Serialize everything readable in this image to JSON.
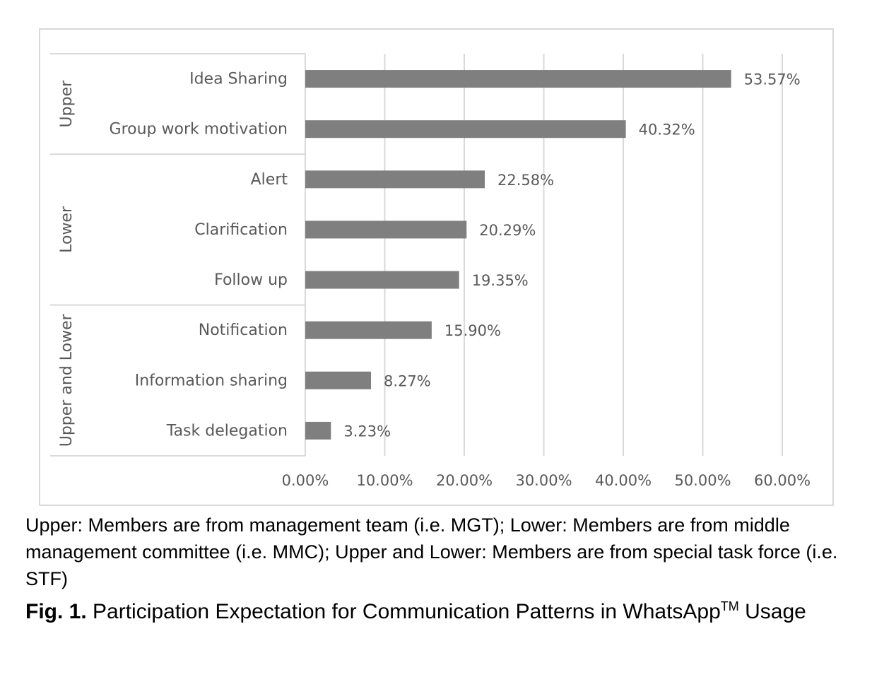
{
  "chart_data": {
    "type": "bar",
    "orientation": "horizontal",
    "title": "",
    "xlabel": "",
    "ylabel": "",
    "xlim": [
      0,
      60
    ],
    "xticks": [
      "0.00%",
      "10.00%",
      "20.00%",
      "30.00%",
      "40.00%",
      "50.00%",
      "60.00%"
    ],
    "grid": "vertical",
    "color": "#7f7f7f",
    "groups": [
      {
        "name": "Upper",
        "categories": [
          "Idea Sharing",
          "Group work motivation"
        ]
      },
      {
        "name": "Lower",
        "categories": [
          "Alert",
          "Clarification",
          "Follow up"
        ]
      },
      {
        "name": "Upper and Lower",
        "categories": [
          "Notification",
          "Information sharing",
          "Task delegation"
        ]
      }
    ],
    "categories": [
      "Idea Sharing",
      "Group work motivation",
      "Alert",
      "Clarification",
      "Follow up",
      "Notification",
      "Information sharing",
      "Task delegation"
    ],
    "values": [
      53.57,
      40.32,
      22.58,
      20.29,
      19.35,
      15.9,
      8.27,
      3.23
    ],
    "data_labels": [
      "53.57%",
      "40.32%",
      "22.58%",
      "20.29%",
      "19.35%",
      "15.90%",
      "8.27%",
      "3.23%"
    ]
  },
  "caption": {
    "note": "Upper: Members are from management team (i.e. MGT); Lower: Members are from middle management committee (i.e. MMC); Upper and Lower: Members are from special task force (i.e. STF)",
    "fig_label": "Fig. 1.",
    "title_main": "Participation Expectation for Communication Patterns in WhatsApp",
    "title_sup": "TM",
    "title_end": "Usage"
  }
}
